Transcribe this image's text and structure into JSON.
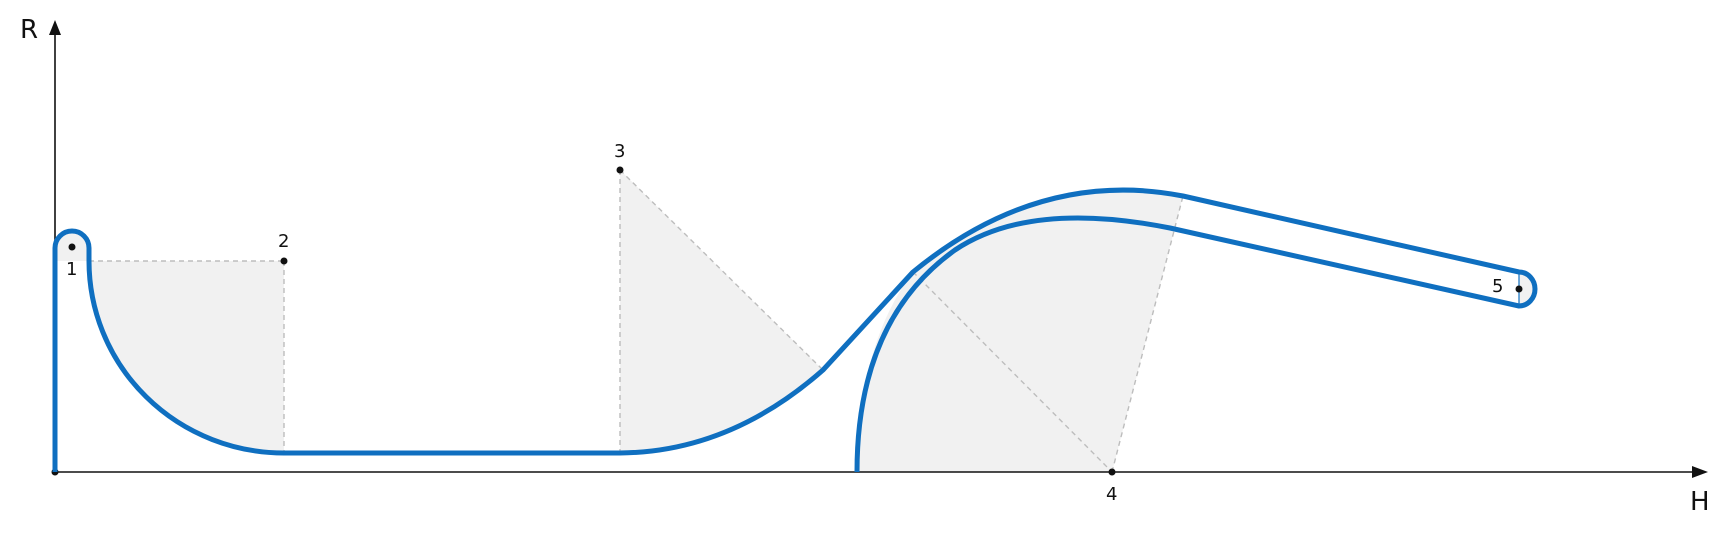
{
  "axes": {
    "x_label": "H",
    "y_label": "R"
  },
  "points": [
    {
      "label": "1"
    },
    {
      "label": "2"
    },
    {
      "label": "3"
    },
    {
      "label": "4"
    },
    {
      "label": "5"
    }
  ],
  "colors": {
    "profile": "#0f6fc0",
    "shade": "#f1f1f1",
    "guide": "#bdbdbd",
    "axis": "#111111"
  }
}
